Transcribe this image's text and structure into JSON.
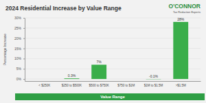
{
  "chart_data": {
    "type": "bar",
    "title": "2024 Residential Increase by Value Range",
    "x_label": "Value Range",
    "y_label": "Percentage Increase",
    "categories": [
      "< $250K",
      "$250 to $500K",
      "$500 to $750K",
      "$750 to $1M",
      "$1M to $1.5M",
      ">$1.5M"
    ],
    "values": [
      0,
      0.3,
      7,
      0,
      -0.1,
      28
    ],
    "value_labels": [
      null,
      "0.3%",
      "7%",
      null,
      "-0.1%",
      "28%"
    ],
    "data_labels": true,
    "color": "#3aae4a",
    "ylim": [
      -1,
      30
    ],
    "yticks": [
      {
        "value": 0,
        "label": "0%"
      },
      {
        "value": 5,
        "label": "5%"
      },
      {
        "value": 10,
        "label": "10%"
      },
      {
        "value": 15,
        "label": "15%"
      },
      {
        "value": 20,
        "label": "20%"
      },
      {
        "value": 25,
        "label": "25%"
      },
      {
        "value": 30,
        "label": "30%"
      }
    ],
    "grid": true
  },
  "logo": {
    "name": "O'CONNOR",
    "tagline": "Tax Reduction Experts"
  }
}
